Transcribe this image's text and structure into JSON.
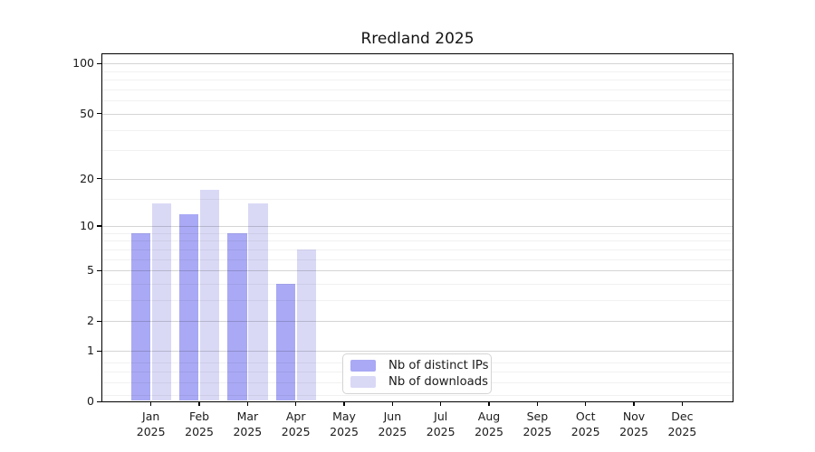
{
  "chart_data": {
    "type": "bar",
    "title": "Rredland 2025",
    "categories": [
      {
        "month": "Jan",
        "year": "2025"
      },
      {
        "month": "Feb",
        "year": "2025"
      },
      {
        "month": "Mar",
        "year": "2025"
      },
      {
        "month": "Apr",
        "year": "2025"
      },
      {
        "month": "May",
        "year": "2025"
      },
      {
        "month": "Jun",
        "year": "2025"
      },
      {
        "month": "Jul",
        "year": "2025"
      },
      {
        "month": "Aug",
        "year": "2025"
      },
      {
        "month": "Sep",
        "year": "2025"
      },
      {
        "month": "Oct",
        "year": "2025"
      },
      {
        "month": "Nov",
        "year": "2025"
      },
      {
        "month": "Dec",
        "year": "2025"
      }
    ],
    "series": [
      {
        "name": "Nb of distinct IPs",
        "color": "#a9a9f5",
        "values": [
          9,
          12,
          9,
          4,
          null,
          null,
          null,
          null,
          null,
          null,
          null,
          null
        ]
      },
      {
        "name": "Nb of downloads",
        "color": "#d9d9f6",
        "values": [
          14,
          17,
          14,
          7,
          null,
          null,
          null,
          null,
          null,
          null,
          null,
          null
        ]
      }
    ],
    "y_axis": {
      "scale": "log1p",
      "ticks": [
        0,
        1,
        2,
        5,
        10,
        20,
        50,
        100
      ],
      "minor_ticks": [
        0.1,
        0.3,
        0.5,
        0.7,
        3,
        4,
        6,
        7,
        8,
        9,
        15,
        30,
        40,
        60,
        70,
        80,
        90
      ],
      "ylim": [
        0,
        115
      ]
    },
    "grid": true,
    "legend_position": "lower center"
  }
}
